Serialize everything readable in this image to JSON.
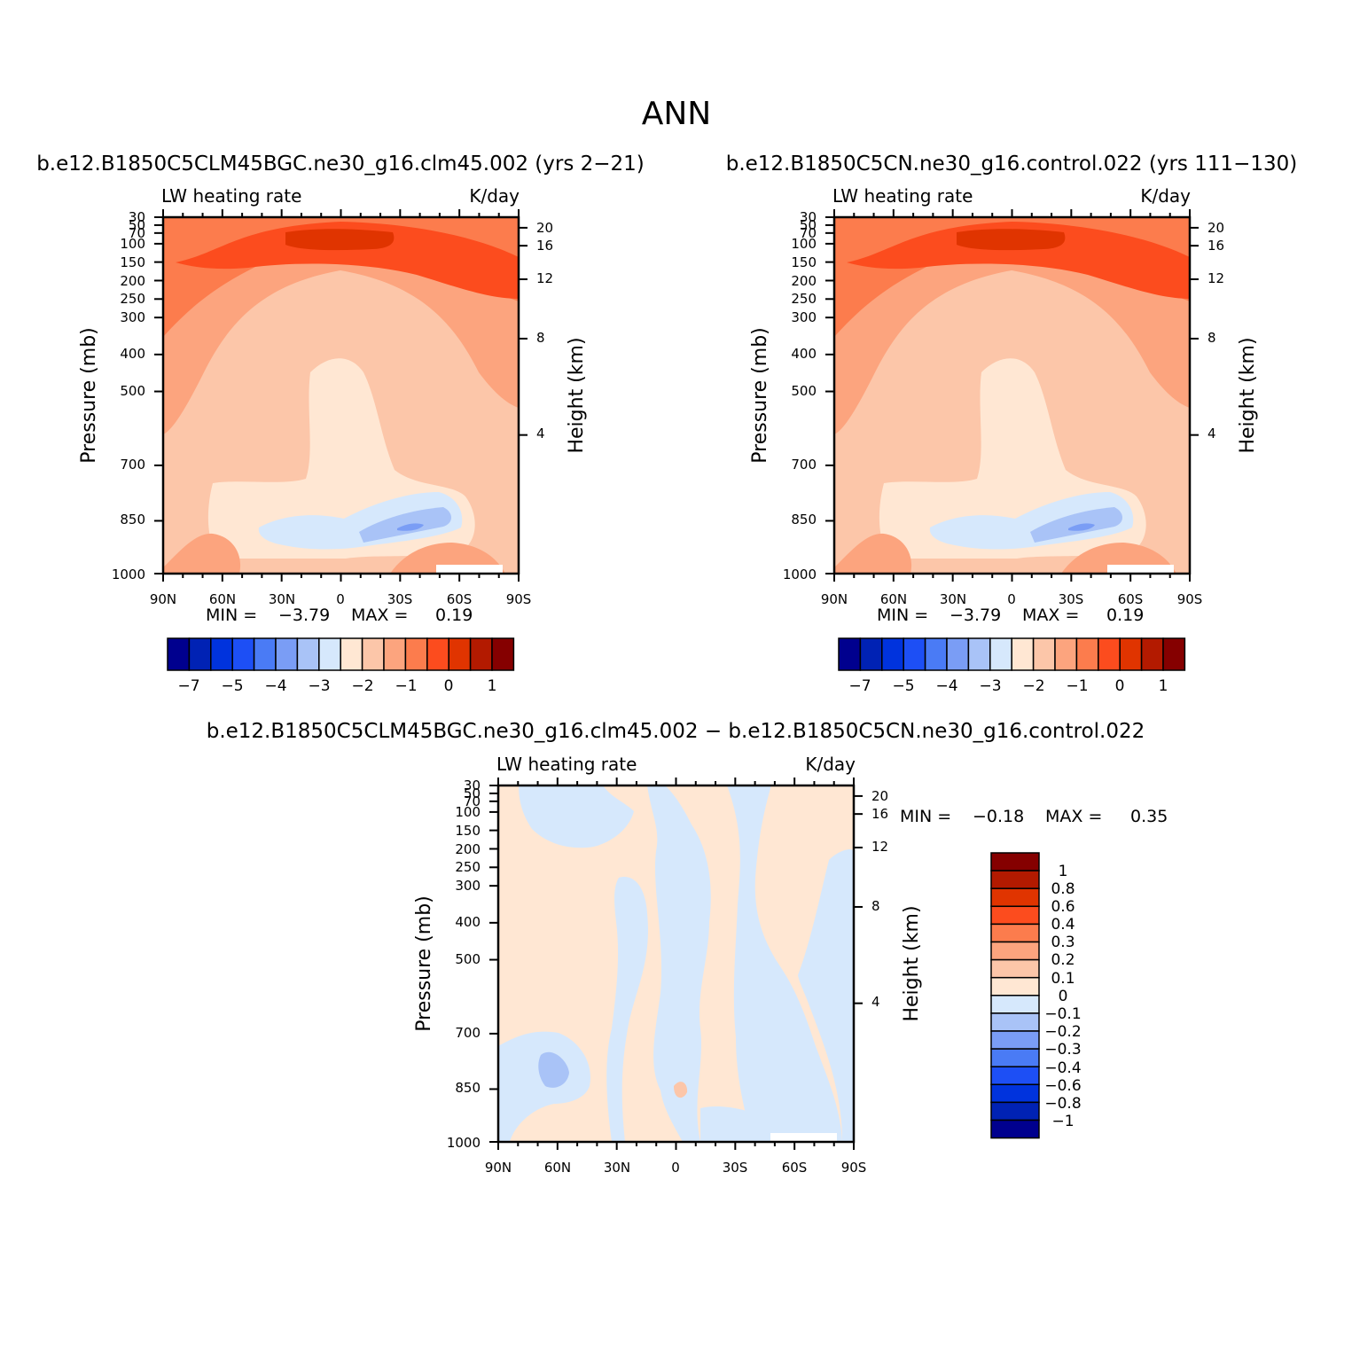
{
  "figure": {
    "main_title": "ANN",
    "bg_color": "#ffffff"
  },
  "colors": {
    "abs_levels": [
      "#00008e",
      "#0022b4",
      "#0033dd",
      "#1d4ff5",
      "#4a7bf5",
      "#7a9df5",
      "#a9c3f7",
      "#d6e8fc",
      "#ffe7d3",
      "#fcc6a9",
      "#fca47e",
      "#fc7c4d",
      "#fc4c1e",
      "#e03400",
      "#b31a00",
      "#850000"
    ],
    "diff_levels": [
      "#00008e",
      "#0022b4",
      "#0033dd",
      "#1d4ff5",
      "#4a7bf5",
      "#7a9df5",
      "#a9c3f7",
      "#d6e8fc",
      "#ffe7d3",
      "#fcc6a9",
      "#fca47e",
      "#fc7c4d",
      "#fc4c1e",
      "#e03400",
      "#b31a00",
      "#850000"
    ]
  },
  "chart_data": [
    {
      "type": "heatmap",
      "title": "b.e12.B1850C5CLM45BGC.ne30_g16.clm45.002 (yrs 2-21)",
      "left_string": "LW heating rate",
      "right_string": "K/day",
      "xlabel": "",
      "ylabel": "Pressure (mb)",
      "ylabel_right": "Height (km)",
      "x_ticks": [
        "90N",
        "60N",
        "30N",
        "0",
        "30S",
        "60S",
        "90S"
      ],
      "y_ticks": [
        "30",
        "50",
        "70",
        "100",
        "150",
        "200",
        "250",
        "300",
        "400",
        "500",
        "700",
        "850",
        "1000"
      ],
      "y_right_ticks": [
        "20",
        "16",
        "12",
        "8",
        "4"
      ],
      "stats": {
        "min_label": "MIN =",
        "min": "-3.79",
        "max_label": "MAX =",
        "max": "0.19"
      },
      "colorbar": {
        "orientation": "horizontal",
        "labels": [
          "-7",
          "-5",
          "-4",
          "-3",
          "-2",
          "-1",
          "0",
          "1"
        ]
      },
      "grid": false
    },
    {
      "type": "heatmap",
      "title": "b.e12.B1850C5CN.ne30_g16.control.022 (yrs 111-130)",
      "left_string": "LW heating rate",
      "right_string": "K/day",
      "xlabel": "",
      "ylabel": "Pressure (mb)",
      "ylabel_right": "Height (km)",
      "x_ticks": [
        "90N",
        "60N",
        "30N",
        "0",
        "30S",
        "60S",
        "90S"
      ],
      "y_ticks": [
        "30",
        "50",
        "70",
        "100",
        "150",
        "200",
        "250",
        "300",
        "400",
        "500",
        "700",
        "850",
        "1000"
      ],
      "y_right_ticks": [
        "20",
        "16",
        "12",
        "8",
        "4"
      ],
      "stats": {
        "min_label": "MIN =",
        "min": "-3.79",
        "max_label": "MAX =",
        "max": "0.19"
      },
      "colorbar": {
        "orientation": "horizontal",
        "labels": [
          "-7",
          "-5",
          "-4",
          "-3",
          "-2",
          "-1",
          "0",
          "1"
        ]
      },
      "grid": false
    },
    {
      "type": "heatmap",
      "title": "b.e12.B1850C5CLM45BGC.ne30_g16.clm45.002 - b.e12.B1850C5CN.ne30_g16.control.022",
      "left_string": "LW heating rate",
      "right_string": "K/day",
      "xlabel": "",
      "ylabel": "Pressure (mb)",
      "ylabel_right": "Height (km)",
      "x_ticks": [
        "90N",
        "60N",
        "30N",
        "0",
        "30S",
        "60S",
        "90S"
      ],
      "y_ticks": [
        "30",
        "50",
        "70",
        "100",
        "150",
        "200",
        "250",
        "300",
        "400",
        "500",
        "700",
        "850",
        "1000"
      ],
      "y_right_ticks": [
        "20",
        "16",
        "12",
        "8",
        "4"
      ],
      "stats": {
        "min_label": "MIN =",
        "min": "-0.18",
        "max_label": "MAX =",
        "max": "0.35"
      },
      "colorbar": {
        "orientation": "vertical",
        "labels": [
          "1",
          "0.8",
          "0.6",
          "0.4",
          "0.3",
          "0.2",
          "0.1",
          "0",
          "-0.1",
          "-0.2",
          "-0.3",
          "-0.4",
          "-0.6",
          "-0.8",
          "-1"
        ]
      },
      "grid": false
    }
  ]
}
